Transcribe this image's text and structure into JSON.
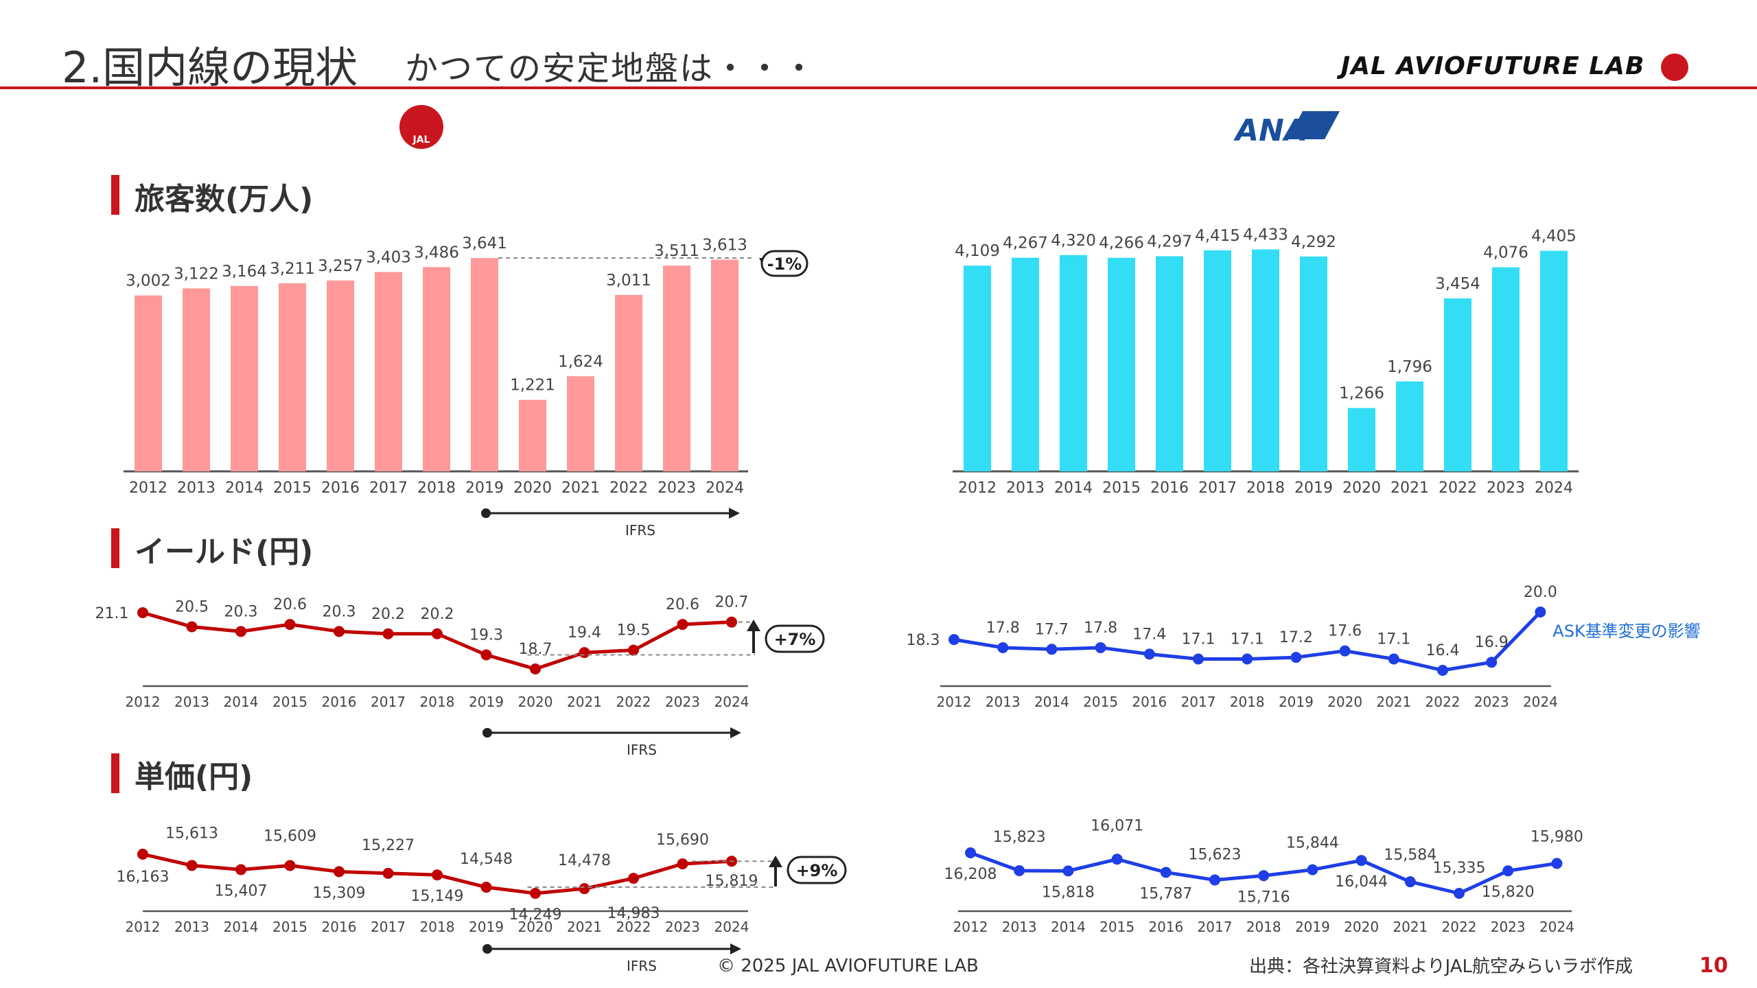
{
  "header": {
    "title": "2.国内線の現状",
    "subtitle": "かつての安定地盤は・・・",
    "brand": "JAL AVIOFUTURE LAB"
  },
  "logos": {
    "jal": "JAL",
    "ana": "ANA"
  },
  "sections": {
    "passengers": "旅客数(万人)",
    "yield": "イールド(円)",
    "unit_price": "単価(円)"
  },
  "footer": {
    "copyright": "© 2025 JAL AVIOFUTURE LAB",
    "source": "出典：各社決算資料よりJAL航空みらいラボ作成",
    "page": "10"
  },
  "colors": {
    "jal_bar": "#ff9999",
    "ana_bar": "#33ddf5",
    "jal_line": "#c00000",
    "ana_line": "#1f3ee6",
    "accent": "#c9151e"
  },
  "chart_data": [
    {
      "id": "jal-passengers",
      "type": "bar",
      "categories": [
        "2012",
        "2013",
        "2014",
        "2015",
        "2016",
        "2017",
        "2018",
        "2019",
        "2020",
        "2021",
        "2022",
        "2023",
        "2024"
      ],
      "values": [
        3002,
        3122,
        3164,
        3211,
        3257,
        3403,
        3486,
        3641,
        1221,
        1624,
        3011,
        3511,
        3613
      ],
      "labels": [
        "3,002",
        "3,122",
        "3,164",
        "3,211",
        "3,257",
        "3,403",
        "3,486",
        "3,641",
        "1,221",
        "1,624",
        "3,011",
        "3,511",
        "3,613"
      ],
      "ylim": [
        0,
        3700
      ],
      "annotation": "-1%",
      "ifrs_label": "IFRS"
    },
    {
      "id": "ana-passengers",
      "type": "bar",
      "categories": [
        "2012",
        "2013",
        "2014",
        "2015",
        "2016",
        "2017",
        "2018",
        "2019",
        "2020",
        "2021",
        "2022",
        "2023",
        "2024"
      ],
      "values": [
        4109,
        4267,
        4320,
        4266,
        4297,
        4415,
        4433,
        4292,
        1266,
        1796,
        3454,
        4076,
        4405
      ],
      "labels": [
        "4,109",
        "4,267",
        "4,320",
        "4,266",
        "4,297",
        "4,415",
        "4,433",
        "4,292",
        "1,266",
        "1,796",
        "3,454",
        "4,076",
        "4,405"
      ],
      "ylim": [
        0,
        4550
      ]
    },
    {
      "id": "jal-yield",
      "type": "line",
      "categories": [
        "2012",
        "2013",
        "2014",
        "2015",
        "2016",
        "2017",
        "2018",
        "2019",
        "2020",
        "2021",
        "2022",
        "2023",
        "2024"
      ],
      "values": [
        21.1,
        20.5,
        20.3,
        20.6,
        20.3,
        20.2,
        20.2,
        19.3,
        18.7,
        19.4,
        19.5,
        20.6,
        20.7
      ],
      "labels": [
        "21.1",
        "20.5",
        "20.3",
        "20.6",
        "20.3",
        "20.2",
        "20.2",
        "19.3",
        "18.7",
        "19.4",
        "19.5",
        "20.6",
        "20.7"
      ],
      "ylim": [
        18.7,
        21.1
      ],
      "annotation": "+7%",
      "ifrs_label": "IFRS"
    },
    {
      "id": "ana-yield",
      "type": "line",
      "categories": [
        "2012",
        "2013",
        "2014",
        "2015",
        "2016",
        "2017",
        "2018",
        "2019",
        "2020",
        "2021",
        "2022",
        "2023",
        "2024"
      ],
      "values": [
        18.3,
        17.8,
        17.7,
        17.8,
        17.4,
        17.1,
        17.1,
        17.2,
        17.6,
        17.1,
        16.4,
        16.9,
        20.0
      ],
      "labels": [
        "18.3",
        "17.8",
        "17.7",
        "17.8",
        "17.4",
        "17.1",
        "17.1",
        "17.2",
        "17.6",
        "17.1",
        "16.4",
        "16.9",
        "20.0"
      ],
      "ylim": [
        16.4,
        20.0
      ],
      "annotation": "ASK基準変更の影響"
    },
    {
      "id": "jal-unit-price",
      "type": "line",
      "categories": [
        "2012",
        "2013",
        "2014",
        "2015",
        "2016",
        "2017",
        "2018",
        "2019",
        "2020",
        "2021",
        "2022",
        "2023",
        "2024"
      ],
      "values": [
        16163,
        15613,
        15407,
        15609,
        15309,
        15227,
        15149,
        14548,
        14249,
        14478,
        14983,
        15690,
        15819
      ],
      "labels": [
        "16,163",
        "15,613",
        "15,407",
        "15,609",
        "15,309",
        "15,227",
        "15,149",
        "14,548",
        "14,249",
        "14,478",
        "14,983",
        "15,690",
        "15,819"
      ],
      "ylim": [
        14249,
        16163
      ],
      "annotation": "+9%",
      "ifrs_label": "IFRS"
    },
    {
      "id": "ana-unit-price",
      "type": "line",
      "categories": [
        "2012",
        "2013",
        "2014",
        "2015",
        "2016",
        "2017",
        "2018",
        "2019",
        "2020",
        "2021",
        "2022",
        "2023",
        "2024"
      ],
      "values": [
        16208,
        15823,
        15818,
        16071,
        15787,
        15623,
        15716,
        15844,
        16044,
        15584,
        15335,
        15820,
        15980
      ],
      "labels": [
        "16,208",
        "15,823",
        "15,818",
        "16,071",
        "15,787",
        "15,623",
        "15,716",
        "15,844",
        "16,044",
        "15,584",
        "15,335",
        "15,820",
        "15,980"
      ],
      "ylim": [
        15335,
        16208
      ]
    }
  ]
}
